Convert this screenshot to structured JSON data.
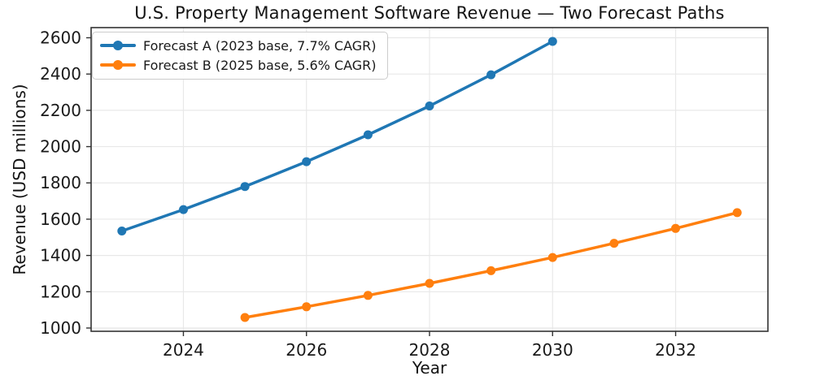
{
  "chart_data": {
    "type": "line",
    "title": "U.S. Property Management Software Revenue — Two Forecast Paths",
    "xlabel": "Year",
    "ylabel": "Revenue (USD millions)",
    "xlim": [
      2022.5,
      2033.5
    ],
    "ylim": [
      982,
      2656
    ],
    "xticks": [
      2024,
      2026,
      2028,
      2030,
      2032
    ],
    "yticks": [
      1000,
      1200,
      1400,
      1600,
      1800,
      2000,
      2200,
      2400,
      2600
    ],
    "grid": true,
    "legend_position": "upper-left",
    "marker": "circle",
    "series": [
      {
        "name": "Forecast A (2023 base, 7.7% CAGR)",
        "color": "#1f77b4",
        "x": [
          2023,
          2024,
          2025,
          2026,
          2027,
          2028,
          2029,
          2030
        ],
        "values": [
          1535,
          1653,
          1780,
          1917,
          2065,
          2224,
          2396,
          2580
        ]
      },
      {
        "name": "Forecast B (2025 base, 5.6% CAGR)",
        "color": "#ff7f0e",
        "x": [
          2025,
          2026,
          2027,
          2028,
          2029,
          2030,
          2031,
          2032,
          2033
        ],
        "values": [
          1058,
          1117,
          1180,
          1246,
          1316,
          1389,
          1467,
          1549,
          1636
        ]
      }
    ]
  }
}
